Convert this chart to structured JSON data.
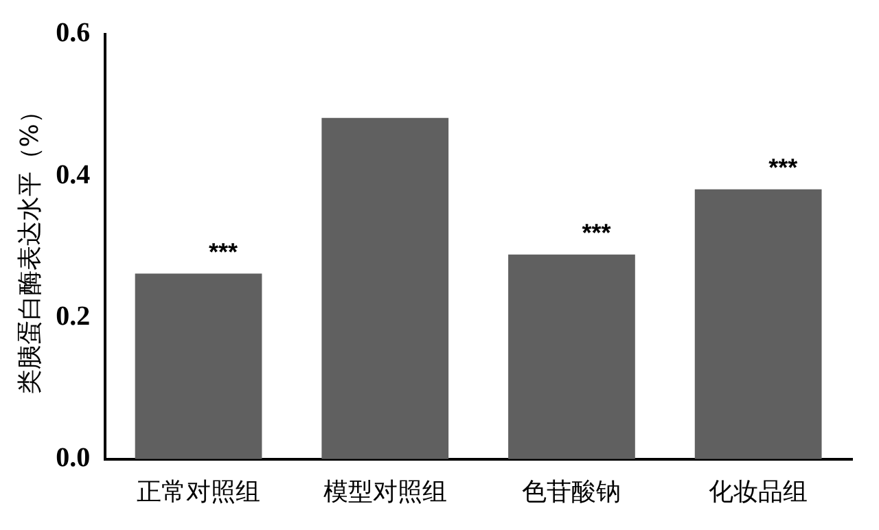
{
  "chart_data": {
    "type": "bar",
    "ylabel": "类胰蛋白酶表达水平（%）",
    "categories": [
      "正常对照组",
      "模型对照组",
      "色苷酸钠",
      "化妆品组"
    ],
    "values": [
      0.262,
      0.482,
      0.289,
      0.381
    ],
    "value_labels": [
      "***",
      null,
      "***",
      "***"
    ],
    "color": "#606060",
    "ylim": [
      0,
      0.6
    ],
    "yticks": [
      {
        "value": 0,
        "label": "0.0"
      },
      {
        "value": 0.2,
        "label": "0.2"
      },
      {
        "value": 0.4,
        "label": "0.4"
      },
      {
        "value": 0.6,
        "label": "0.6"
      }
    ],
    "grid": false,
    "legend": false
  }
}
